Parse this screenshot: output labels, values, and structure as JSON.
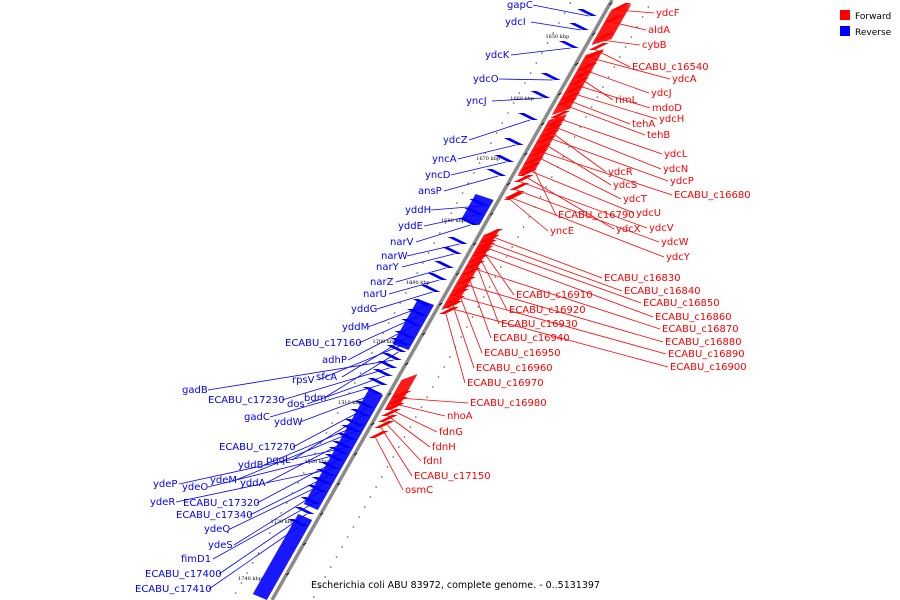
{
  "caption": "Escherichia coli ABU 83972, complete genome. - 0..5131397",
  "colors": {
    "forward": "#ff0000",
    "reverse": "#0000ff",
    "backbone": "#808080"
  },
  "legend": [
    {
      "label": "Forward",
      "color": "#ff0000"
    },
    {
      "label": "Reverse",
      "color": "#0000ff"
    }
  ],
  "ticks": [
    "1650 kbp",
    "1660 kbp",
    "1670 kbp",
    "1680 kbp",
    "1690 kbp",
    "1700 kbp",
    "1710 kbp",
    "1720 kbp",
    "1730 kbp",
    "1740 kbp"
  ],
  "forward_genes": [
    "ydcF",
    "aldA",
    "cybB",
    "ECABU_c16540",
    "ydcA",
    "ydcJ",
    "rimL",
    "mdoD",
    "ydcH",
    "tehA",
    "tehB",
    "ydcL",
    "ydcN",
    "ydcR",
    "ydcP",
    "ydcS",
    "ECABU_c16680",
    "ydcT",
    "ECABU_c16790",
    "ydcU",
    "ydcX",
    "ydcV",
    "yncE",
    "ydcW",
    "ydcY",
    "ECABU_c16830",
    "ECABU_c16840",
    "ECABU_c16910",
    "ECABU_c16850",
    "ECABU_c16920",
    "ECABU_c16860",
    "ECABU_c16930",
    "ECABU_c16870",
    "ECABU_c16940",
    "ECABU_c16880",
    "ECABU_c16950",
    "ECABU_c16890",
    "ECABU_c16960",
    "ECABU_c16900",
    "ECABU_c16970",
    "ECABU_c16980",
    "nhoA",
    "fdnG",
    "fdnH",
    "fdnI",
    "ECABU_c17150",
    "osmC"
  ],
  "reverse_genes": [
    "gapC",
    "ydcI",
    "ydcK",
    "ydcO",
    "yncJ",
    "ydcZ",
    "yncA",
    "yncD",
    "ansP",
    "yddH",
    "yddE",
    "narV",
    "narW",
    "narY",
    "narZ",
    "narU",
    "yddG",
    "yddM",
    "ECABU_c17160",
    "adhP",
    "sfcA",
    "rpsV",
    "bdm",
    "gadB",
    "ECABU_c17230",
    "dos",
    "gadC",
    "yddW",
    "ECABU_c17270",
    "pqqL",
    "yddB",
    "ydeM",
    "yddA",
    "ydeP",
    "ydeO",
    "ECABU_c17320",
    "ydeR",
    "ECABU_c17340",
    "ydeQ",
    "ydeS",
    "fimD1",
    "ECABU_c17400",
    "ECABU_c17410"
  ]
}
